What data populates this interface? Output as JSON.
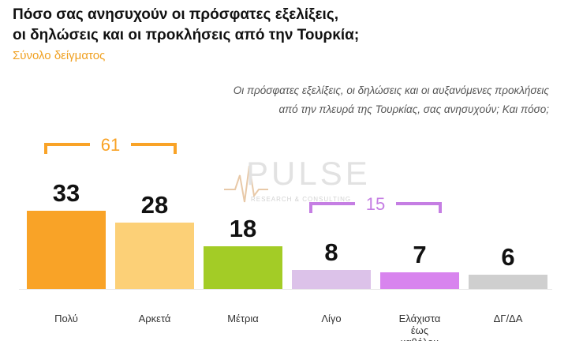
{
  "header": {
    "title_line1": "Πόσο σας ανησυχούν οι πρόσφατες εξελίξεις,",
    "title_line2": "οι δηλώσεις και οι προκλήσεις από την Τουρκία;",
    "subtitle": "Σύνολο δείγματος",
    "question_line1": "Οι πρόσφατες εξελίξεις, οι δηλώσεις και οι αυξανόμενες προκλήσεις",
    "question_line2": "από την πλευρά της Τουρκίας, σας ανησυχούν; Και πόσο;"
  },
  "watermark": {
    "brand": "PULSE",
    "tagline": "RESEARCH & CONSULTING"
  },
  "chart_data": {
    "type": "bar",
    "categories": [
      "Πολύ",
      "Αρκετά",
      "Μέτρια",
      "Λίγο",
      "Ελάχιστα έως καθόλου",
      "ΔΓ/ΔΑ"
    ],
    "category_lines": [
      [
        "Πολύ"
      ],
      [
        "Αρκετά"
      ],
      [
        "Μέτρια"
      ],
      [
        "Λίγο"
      ],
      [
        "Ελάχιστα",
        "έως",
        "καθόλου"
      ],
      [
        "ΔΓ/ΔΑ"
      ]
    ],
    "values": [
      33,
      28,
      18,
      8,
      7,
      6
    ],
    "colors": [
      "#f9a327",
      "#fcd077",
      "#a3cc26",
      "#dcc2e9",
      "#d884ee",
      "#cfcfcf"
    ],
    "ylim": [
      0,
      40
    ],
    "groups": [
      {
        "label": "61",
        "from": 0,
        "to": 1,
        "color": "#f9a327"
      },
      {
        "label": "15",
        "from": 3,
        "to": 4,
        "color": "#c57ee3"
      }
    ]
  }
}
